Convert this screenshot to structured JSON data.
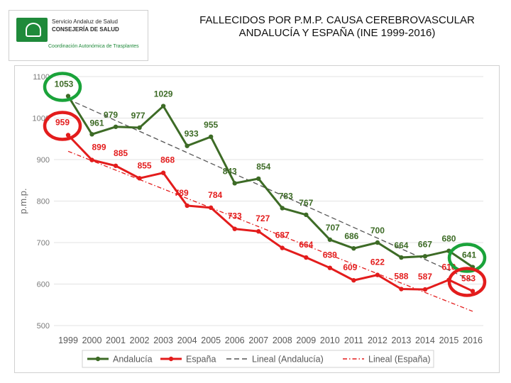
{
  "logo": {
    "line1": "Servicio Andaluz de Salud",
    "line2": "CONSEJERÍA DE SALUD",
    "line3": "Coordinación Autonómica de Trasplantes"
  },
  "title": {
    "line1": "FALLECIDOS POR P.M.P. CAUSA CEREBROVASCULAR",
    "line2": "ANDALUCÍA Y ESPAÑA (INE 1999-2016)"
  },
  "chart_data": {
    "type": "line",
    "title": "FALLECIDOS POR P.M.P. CAUSA CEREBROVASCULAR ANDALUCÍA Y ESPAÑA (INE 1999-2016)",
    "xlabel": "",
    "ylabel": "p.m.p.",
    "ylim": [
      500,
      1100
    ],
    "yticks": [
      500,
      600,
      700,
      800,
      900,
      1000,
      1100
    ],
    "x": [
      "1999",
      "2000",
      "2001",
      "2002",
      "2003",
      "2004",
      "2005",
      "2006",
      "2007",
      "2008",
      "2009",
      "2010",
      "2011",
      "2012",
      "2013",
      "2014",
      "2015",
      "2016"
    ],
    "grid": true,
    "legend_position": "bottom",
    "series": [
      {
        "name": "Andalucía",
        "color": "#3d6b26",
        "values": [
          1053,
          961,
          979,
          977,
          1029,
          933,
          955,
          843,
          854,
          783,
          767,
          707,
          686,
          700,
          664,
          667,
          680,
          641
        ]
      },
      {
        "name": "España",
        "color": "#e31c1c",
        "values": [
          959,
          899,
          885,
          855,
          868,
          789,
          784,
          733,
          727,
          687,
          664,
          639,
          609,
          622,
          588,
          587,
          610,
          583
        ]
      }
    ],
    "trendlines": [
      {
        "name": "Lineal (Andalucía)",
        "of": "Andalucía",
        "color": "#555555",
        "style": "dashed"
      },
      {
        "name": "Lineal (España)",
        "of": "España",
        "color": "#e31c1c",
        "style": "dash-dot"
      }
    ],
    "highlights": [
      {
        "series": "Andalucía",
        "x": "1999",
        "color": "#1aa33a"
      },
      {
        "series": "España",
        "x": "1999",
        "color": "#e31c1c"
      },
      {
        "series": "Andalucía",
        "x": "2016",
        "color": "#1aa33a"
      },
      {
        "series": "España",
        "x": "2016",
        "color": "#e31c1c"
      }
    ]
  }
}
